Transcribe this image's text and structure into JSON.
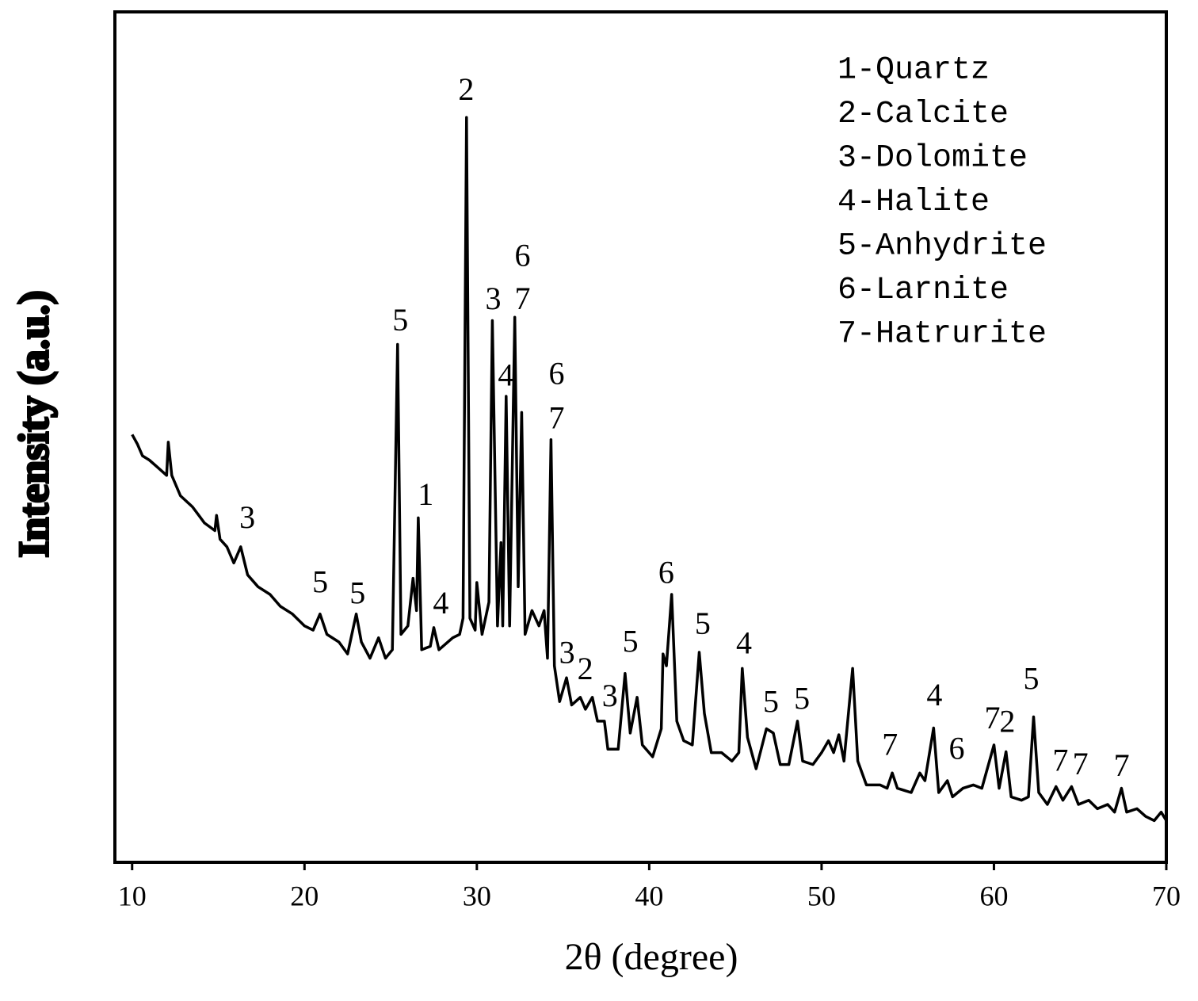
{
  "chart_data": {
    "type": "line",
    "x_label": "2θ (degree)",
    "y_label": "Intensity (a.u.)",
    "color": "#000000",
    "xlim": [
      9,
      70
    ],
    "ylim": [
      0,
      100
    ],
    "xticks": [
      10,
      20,
      30,
      40,
      50,
      60,
      70
    ],
    "x": [
      10.0,
      10.3,
      10.6,
      11.0,
      11.5,
      12.0,
      12.1,
      12.3,
      12.8,
      13.5,
      14.2,
      14.8,
      14.9,
      15.1,
      15.5,
      15.9,
      16.3,
      16.7,
      17.3,
      18.0,
      18.6,
      19.3,
      20.0,
      20.5,
      20.9,
      21.3,
      22.0,
      22.5,
      23.0,
      23.3,
      23.8,
      24.3,
      24.7,
      25.1,
      25.4,
      25.6,
      26.0,
      26.3,
      26.5,
      26.6,
      26.8,
      27.3,
      27.5,
      27.8,
      28.6,
      29.0,
      29.2,
      29.4,
      29.6,
      29.9,
      30.0,
      30.3,
      30.7,
      30.9,
      31.2,
      31.4,
      31.5,
      31.7,
      31.9,
      32.2,
      32.4,
      32.6,
      32.8,
      33.2,
      33.6,
      33.9,
      34.1,
      34.3,
      34.5,
      34.8,
      35.2,
      35.5,
      36.0,
      36.3,
      36.7,
      37.0,
      37.4,
      37.6,
      38.2,
      38.6,
      38.9,
      39.3,
      39.6,
      40.2,
      40.7,
      40.8,
      41.0,
      41.3,
      41.6,
      42.0,
      42.5,
      42.9,
      43.2,
      43.6,
      44.2,
      44.8,
      45.2,
      45.4,
      45.7,
      46.2,
      46.8,
      47.2,
      47.6,
      48.1,
      48.6,
      48.9,
      49.5,
      50.0,
      50.4,
      50.7,
      51.0,
      51.3,
      51.8,
      52.1,
      52.6,
      53.4,
      53.8,
      54.1,
      54.4,
      55.2,
      55.7,
      56.0,
      56.5,
      56.8,
      57.3,
      57.6,
      58.2,
      58.8,
      59.3,
      60.0,
      60.3,
      60.7,
      61.0,
      61.6,
      62.0,
      62.3,
      62.6,
      63.1,
      63.6,
      64.0,
      64.5,
      64.9,
      65.5,
      66.0,
      66.6,
      67.0,
      67.4,
      67.7,
      68.3,
      68.8,
      69.3,
      69.7,
      70.0
    ],
    "values": [
      50.3,
      49.2,
      47.8,
      47.3,
      46.4,
      45.5,
      49.4,
      45.5,
      43.1,
      41.8,
      39.9,
      39.0,
      40.8,
      38.0,
      37.1,
      35.2,
      37.1,
      33.8,
      32.4,
      31.5,
      30.1,
      29.2,
      27.8,
      27.3,
      29.2,
      26.8,
      25.9,
      24.5,
      29.2,
      25.9,
      24.0,
      26.4,
      24.0,
      25.0,
      60.9,
      26.8,
      27.8,
      33.4,
      29.6,
      40.5,
      25.0,
      25.4,
      27.6,
      25.0,
      26.4,
      26.8,
      28.7,
      87.6,
      28.7,
      27.3,
      32.9,
      26.8,
      30.6,
      63.7,
      27.8,
      37.6,
      27.8,
      54.8,
      27.8,
      64.1,
      32.4,
      52.9,
      26.8,
      29.6,
      27.8,
      29.6,
      24.0,
      49.7,
      23.1,
      18.9,
      21.7,
      18.5,
      19.4,
      18.0,
      19.4,
      16.6,
      16.6,
      13.3,
      13.3,
      22.2,
      15.2,
      19.4,
      13.8,
      12.4,
      15.7,
      24.5,
      23.1,
      31.5,
      16.6,
      14.3,
      13.8,
      24.7,
      17.5,
      12.9,
      12.9,
      11.9,
      12.9,
      22.8,
      14.7,
      11.0,
      15.7,
      15.2,
      11.5,
      11.5,
      16.6,
      11.9,
      11.5,
      12.9,
      14.3,
      12.9,
      15.0,
      11.9,
      22.8,
      11.9,
      9.1,
      9.1,
      8.7,
      10.5,
      8.7,
      8.2,
      10.5,
      9.6,
      15.8,
      8.2,
      9.6,
      7.7,
      8.7,
      9.1,
      8.7,
      13.8,
      8.7,
      13.0,
      7.7,
      7.3,
      7.7,
      17.1,
      8.2,
      6.8,
      8.9,
      7.3,
      8.9,
      6.8,
      7.3,
      6.3,
      6.8,
      5.9,
      8.7,
      5.9,
      6.3,
      5.4,
      4.9,
      5.9,
      4.9
    ],
    "annotations": [
      {
        "text": "3",
        "x": 16.68,
        "y": 40.2
      },
      {
        "text": "5",
        "x": 20.91,
        "y": 32.6
      },
      {
        "text": "5",
        "x": 23.08,
        "y": 31.3
      },
      {
        "text": "5",
        "x": 25.56,
        "y": 63.4
      },
      {
        "text": "1",
        "x": 27.03,
        "y": 42.9
      },
      {
        "text": "4",
        "x": 27.91,
        "y": 30.1
      },
      {
        "text": "2",
        "x": 29.38,
        "y": 90.5
      },
      {
        "text": "3",
        "x": 30.95,
        "y": 65.9
      },
      {
        "text": "6",
        "x": 32.65,
        "y": 71.0
      },
      {
        "text": "7",
        "x": 32.65,
        "y": 65.9
      },
      {
        "text": "4",
        "x": 31.68,
        "y": 56.9
      },
      {
        "text": "6",
        "x": 34.63,
        "y": 57.1
      },
      {
        "text": "7",
        "x": 34.63,
        "y": 51.9
      },
      {
        "text": "3",
        "x": 35.23,
        "y": 24.3
      },
      {
        "text": "2",
        "x": 36.29,
        "y": 22.4
      },
      {
        "text": "3",
        "x": 37.72,
        "y": 19.2
      },
      {
        "text": "5",
        "x": 38.91,
        "y": 25.6
      },
      {
        "text": "6",
        "x": 40.99,
        "y": 33.7
      },
      {
        "text": "5",
        "x": 43.1,
        "y": 27.7
      },
      {
        "text": "4",
        "x": 45.5,
        "y": 25.4
      },
      {
        "text": "5",
        "x": 47.06,
        "y": 18.5
      },
      {
        "text": "5",
        "x": 48.86,
        "y": 18.9
      },
      {
        "text": "7",
        "x": 53.97,
        "y": 13.5
      },
      {
        "text": "4",
        "x": 56.55,
        "y": 19.3
      },
      {
        "text": "6",
        "x": 57.84,
        "y": 13.0
      },
      {
        "text": "7",
        "x": 59.91,
        "y": 16.6
      },
      {
        "text": "2",
        "x": 60.78,
        "y": 16.2
      },
      {
        "text": "5",
        "x": 62.16,
        "y": 21.2
      },
      {
        "text": "7",
        "x": 63.86,
        "y": 11.6
      },
      {
        "text": "7",
        "x": 65.02,
        "y": 11.2
      },
      {
        "text": "7",
        "x": 67.41,
        "y": 11.0
      }
    ],
    "legend_text": [
      "1-Quartz",
      "2-Calcite",
      "3-Dolomite",
      "4-Halite",
      "5-Anhydrite",
      "6-Larnite",
      "7-Hatrurite"
    ]
  }
}
